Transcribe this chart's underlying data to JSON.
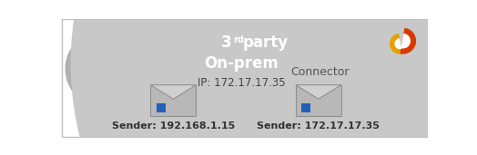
{
  "bg_color": "#ffffff",
  "border_color": "#c0c0c0",
  "globe_color": "#b0b0b0",
  "globe_land_color": "#e8e8e8",
  "arrow1_color": "#a0a0a0",
  "box_blue_color": "#2196c8",
  "box_gray_color": "#808080",
  "box_blue_text_3": "3",
  "box_blue_text_rd": "rd",
  "box_blue_text_party": " party",
  "box_gray_text": "On-prem",
  "box_ip_text": "IP: 172.17.17.35",
  "arrow2_color": "#c84000",
  "connector_label": "Connector",
  "cloud_color": "#c8c8c8",
  "envelope_color": "#b8b8b8",
  "envelope_flap_color": "#d0d0d0",
  "stamp_color": "#2060b8",
  "sender1_label": "Sender: 192.168.1.15",
  "sender2_label": "Sender: 172.17.17.35",
  "o365_red": "#d83b01",
  "o365_orange": "#e8a000",
  "figsize": [
    5.24,
    1.71
  ],
  "dpi": 100
}
